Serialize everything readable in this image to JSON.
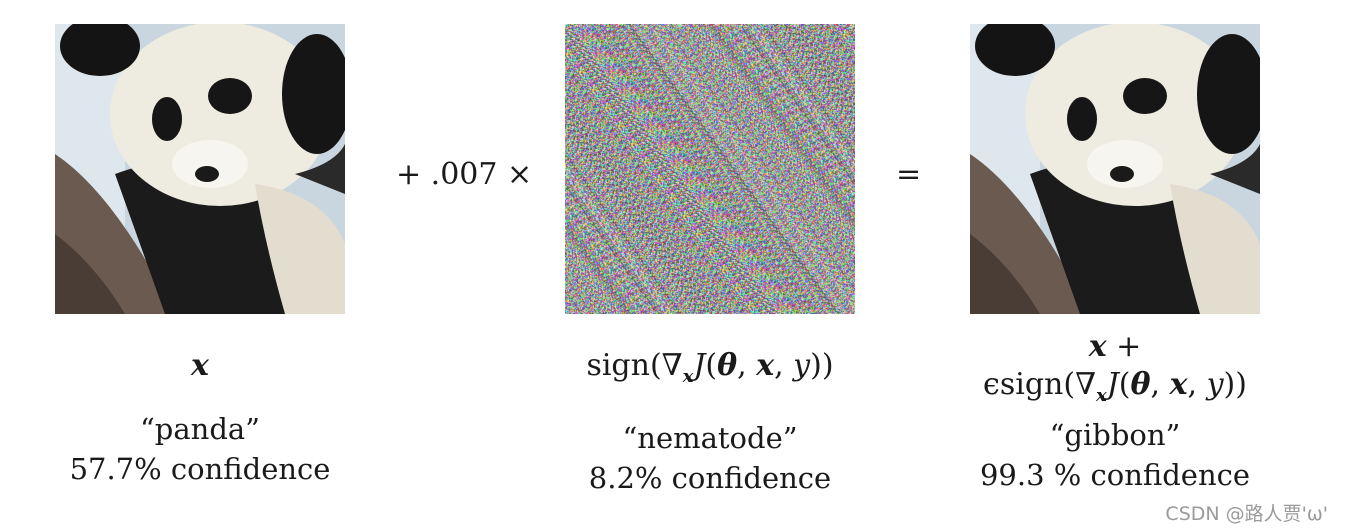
{
  "operator_multiply": "+ .007 ×",
  "operator_equals": "=",
  "left": {
    "math": "x",
    "label": "“panda”",
    "confidence": "57.7% confidence"
  },
  "middle": {
    "math_prefix": "sign(",
    "nabla": "∇",
    "sub_x": "x",
    "j": "J",
    "paren_open": "(",
    "theta": "θ",
    "comma1": ", ",
    "x": "x",
    "comma2": ", ",
    "y": "y",
    "paren_close": "))",
    "label": "“nematode”",
    "confidence": "8.2% confidence"
  },
  "right": {
    "math_line1_x": "x",
    "math_line1_plus": " +",
    "epsilon": "ϵ",
    "math_prefix": "sign(",
    "nabla": "∇",
    "sub_x": "x",
    "j": "J",
    "paren_open": "(",
    "theta": "θ",
    "comma1": ", ",
    "x": "x",
    "comma2": ", ",
    "y": "y",
    "paren_close": "))",
    "label": "“gibbon”",
    "confidence": "99.3 % confidence"
  },
  "watermark": "CSDN @路人贾'ω'"
}
